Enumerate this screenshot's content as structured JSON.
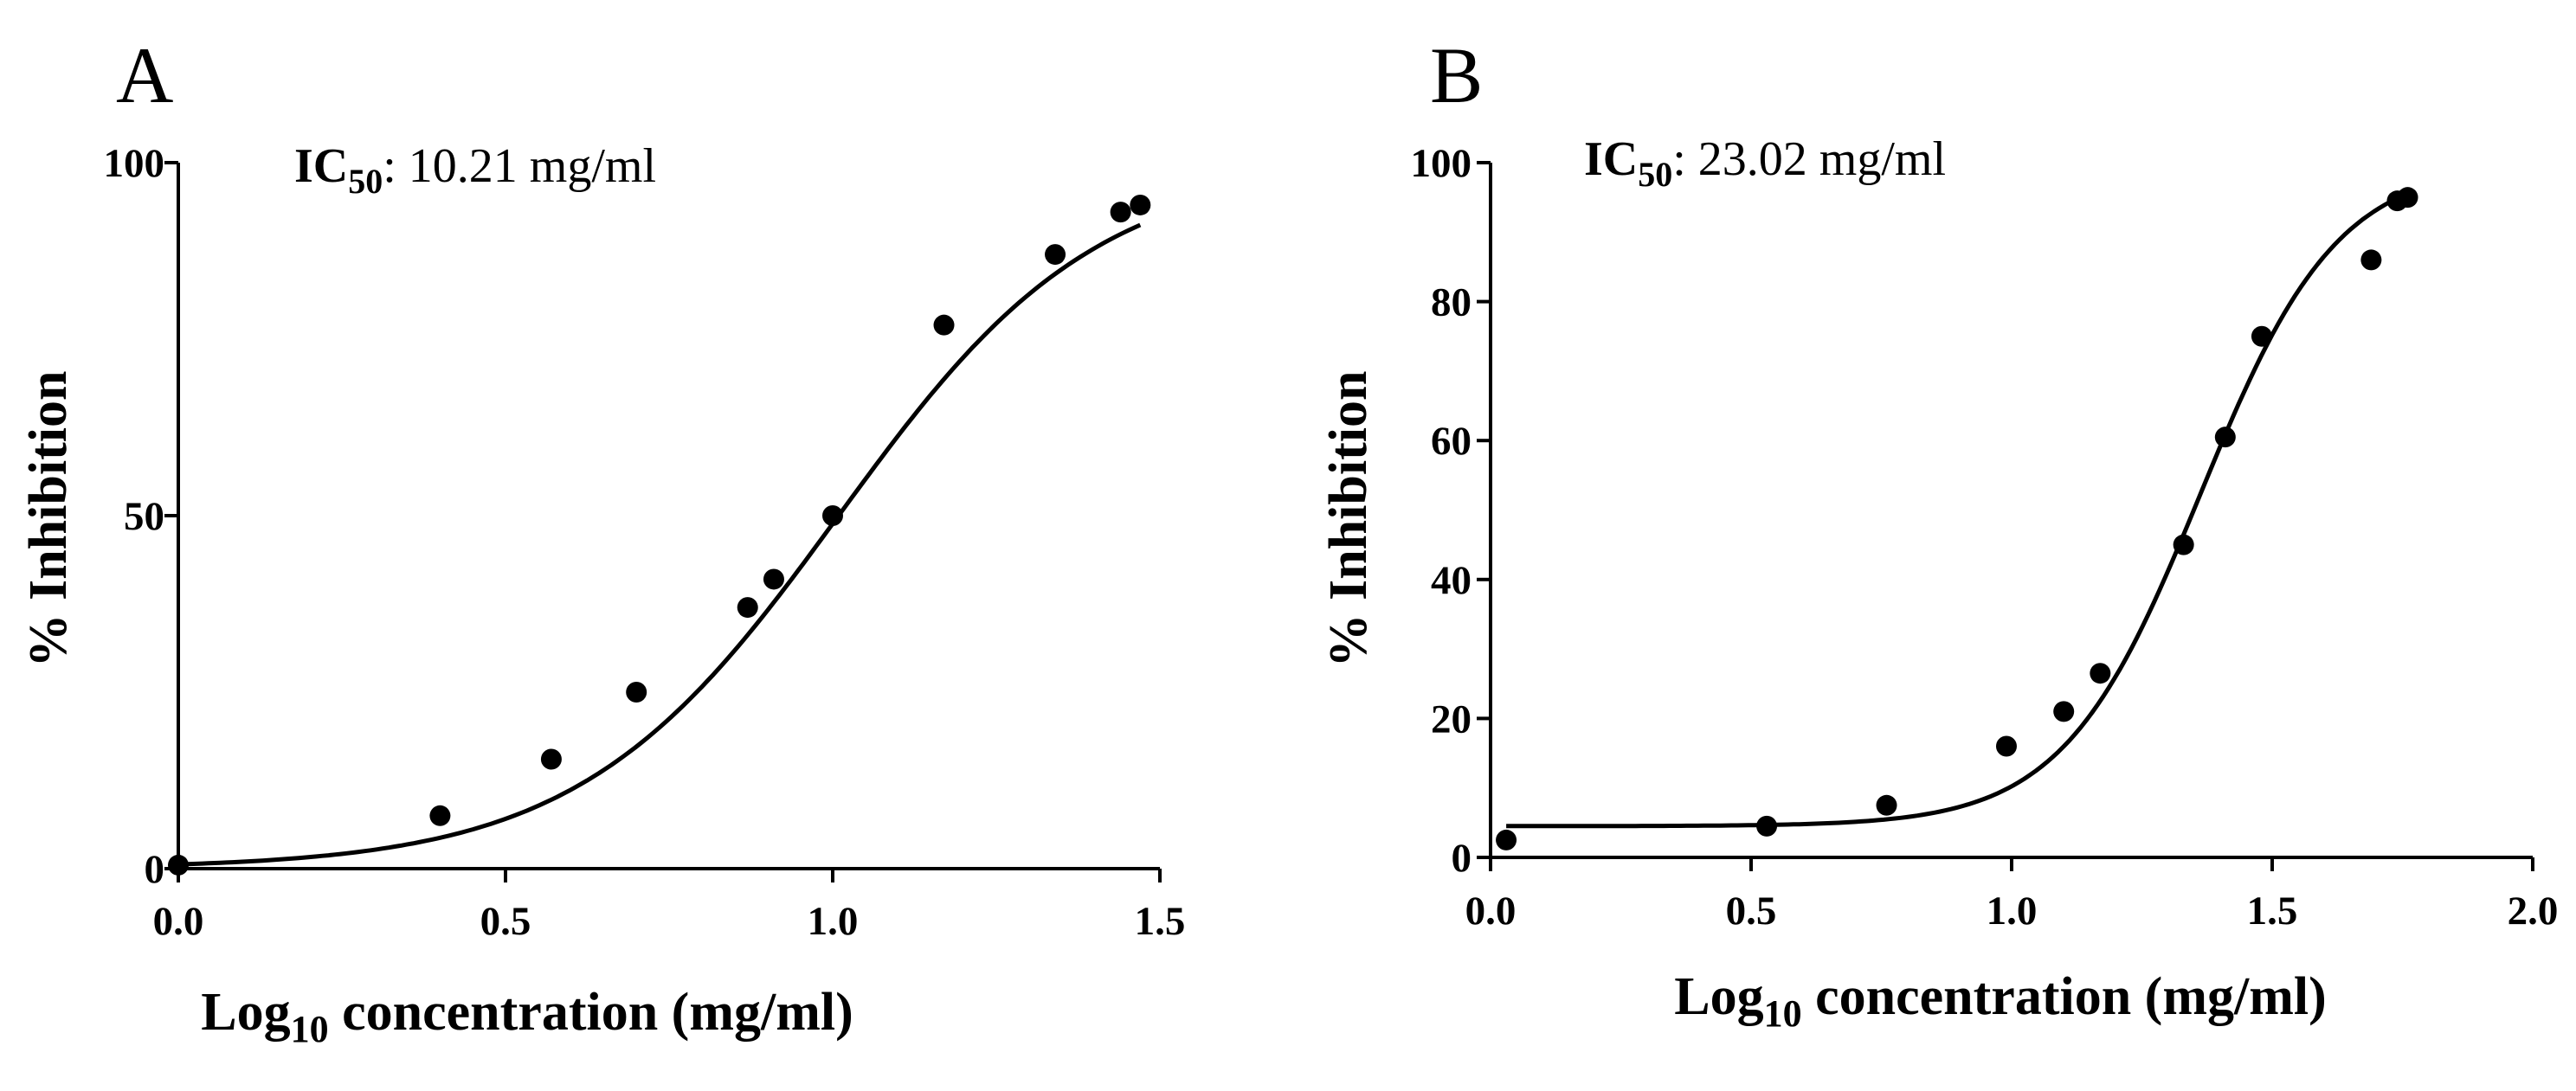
{
  "chart_data": [
    {
      "type": "scatter",
      "panel_label": "A",
      "annotation": {
        "prefix": "IC",
        "subscript": "50",
        "value": ": 10.21 mg/ml"
      },
      "xlabel": {
        "prefix": "Log",
        "subscript": "10",
        "suffix": " concentration (mg/ml)"
      },
      "ylabel": "% Inhibition",
      "xlim": [
        0,
        1.5
      ],
      "ylim": [
        0,
        100
      ],
      "x_ticks": [
        0,
        0.5,
        1.0,
        1.5
      ],
      "x_tick_labels": [
        "0.0",
        "0.5",
        "1.0",
        "1.5"
      ],
      "y_ticks": [
        0,
        50,
        100
      ],
      "y_tick_labels": [
        "0",
        "50",
        "100"
      ],
      "grid": false,
      "series": [
        {
          "x": [
            0.0,
            0.4,
            0.57,
            0.7,
            0.87,
            0.91,
            1.0,
            1.17,
            1.34,
            1.44,
            1.47
          ],
          "y": [
            0.5,
            7.5,
            15.5,
            25,
            37,
            41,
            50,
            77,
            87,
            93,
            94
          ]
        }
      ],
      "fit": {
        "model": "logistic",
        "bottom": 0,
        "top": 100,
        "log_ic50": 1.009,
        "hill": 2.2,
        "x_range": [
          0.0,
          1.47
        ]
      }
    },
    {
      "type": "scatter",
      "panel_label": "B",
      "annotation": {
        "prefix": "IC",
        "subscript": "50",
        "value": ": 23.02 mg/ml"
      },
      "xlabel": {
        "prefix": "Log",
        "subscript": "10",
        "suffix": " concentration (mg/ml)"
      },
      "ylabel": "% Inhibition",
      "xlim": [
        0,
        2.0
      ],
      "ylim": [
        0,
        100
      ],
      "x_ticks": [
        0,
        0.5,
        1.0,
        1.5,
        2.0
      ],
      "x_tick_labels": [
        "0.0",
        "0.5",
        "1.0",
        "1.5",
        "2.0"
      ],
      "y_ticks": [
        0,
        20,
        40,
        60,
        80,
        100
      ],
      "y_tick_labels": [
        "0",
        "20",
        "40",
        "60",
        "80",
        "100"
      ],
      "grid": false,
      "series": [
        {
          "x": [
            0.03,
            0.53,
            0.76,
            0.99,
            1.1,
            1.17,
            1.33,
            1.41,
            1.48,
            1.69,
            1.74,
            1.76
          ],
          "y": [
            2.5,
            4.5,
            7.5,
            16,
            21,
            26.5,
            45,
            60.5,
            75,
            86,
            94.5,
            95
          ]
        }
      ],
      "fit": {
        "model": "logistic",
        "bottom": 4.5,
        "top": 100,
        "log_ic50": 1.362,
        "hill": 3.3,
        "x_range": [
          0.03,
          1.76
        ]
      }
    }
  ]
}
